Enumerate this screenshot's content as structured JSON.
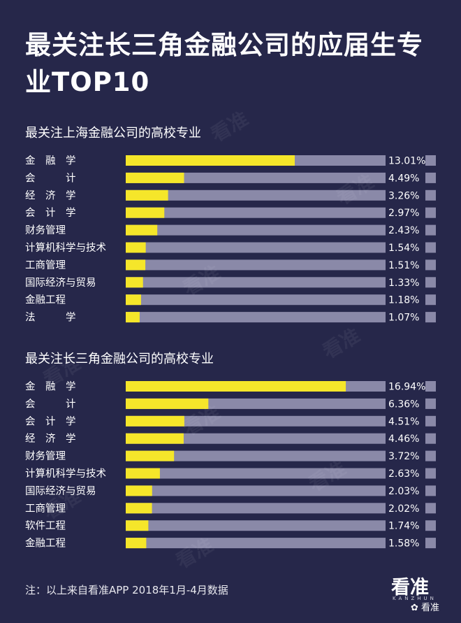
{
  "title": "最关注长三角金融公司的应届生专业TOP10",
  "watermark_text": "看准",
  "colors": {
    "background": "#26274a",
    "bar_fill": "#f5e62a",
    "bar_track": "#8a89a8",
    "label": "#ffffff",
    "end_marker": "#8a89a8"
  },
  "chart_data": [
    {
      "type": "bar",
      "orientation": "horizontal",
      "title": "最关注上海金融公司的高校专业",
      "categories": [
        "金　融　学",
        "会　　　计",
        "经　济　学",
        "会　计　学",
        "财务管理",
        "计算机科学与技术",
        "工商管理",
        "国际经济与贸易",
        "金融工程",
        "法　　　学"
      ],
      "values": [
        13.01,
        4.49,
        3.26,
        2.97,
        2.43,
        1.54,
        1.51,
        1.33,
        1.18,
        1.07
      ],
      "value_labels": [
        "13.01%",
        "4.49%",
        "3.26%",
        "2.97%",
        "2.43%",
        "1.54%",
        "1.51%",
        "1.33%",
        "1.18%",
        "1.07%"
      ],
      "xlim": [
        0,
        20
      ]
    },
    {
      "type": "bar",
      "orientation": "horizontal",
      "title": "最关注长三角金融公司的高校专业",
      "categories": [
        "金　融　学",
        "会　　　计",
        "会　计　学",
        "经　济　学",
        "财务管理",
        "计算机科学与技术",
        "国际经济与贸易",
        "工商管理",
        "软件工程",
        "金融工程"
      ],
      "values": [
        16.94,
        6.36,
        4.51,
        4.46,
        3.72,
        2.63,
        2.03,
        2.02,
        1.74,
        1.58
      ],
      "value_labels": [
        "16.94%",
        "6.36%",
        "4.51%",
        "4.46%",
        "3.72%",
        "2.63%",
        "2.03%",
        "2.02%",
        "1.74%",
        "1.58%"
      ],
      "xlim": [
        0,
        20
      ]
    }
  ],
  "note": "注：以上来自看准APP 2018年1月-4月数据",
  "logo": {
    "name": "看准",
    "sub": "KANZHUN",
    "wechat": "看准"
  }
}
